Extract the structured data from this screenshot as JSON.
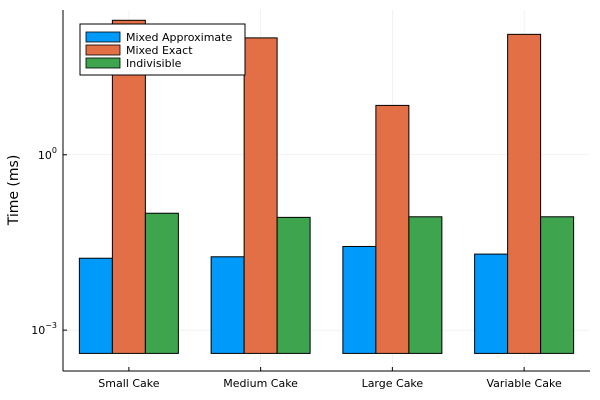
{
  "chart_data": {
    "type": "bar",
    "title": "",
    "xlabel": "",
    "ylabel": "Time (ms)",
    "yscale": "log",
    "ylim": [
      0.0002,
      300
    ],
    "yticks": [
      {
        "value": 0.001,
        "base": "10",
        "exp": "−3"
      },
      {
        "value": 1,
        "base": "10",
        "exp": "0"
      }
    ],
    "grid": true,
    "legend_position": "top-left",
    "categories": [
      "Small Cake",
      "Medium Cake",
      "Large Cake",
      "Variable Cake"
    ],
    "bar_floor": 0.0004,
    "series": [
      {
        "name": "Mixed Approximate",
        "color": "#009AFA",
        "values": [
          0.017,
          0.018,
          0.027,
          0.02
        ]
      },
      {
        "name": "Mixed Exact",
        "color": "#E26F46",
        "values": [
          200,
          100,
          7,
          115
        ]
      },
      {
        "name": "Indivisible",
        "color": "#3EA44E",
        "values": [
          0.1,
          0.085,
          0.087,
          0.087
        ]
      }
    ]
  }
}
